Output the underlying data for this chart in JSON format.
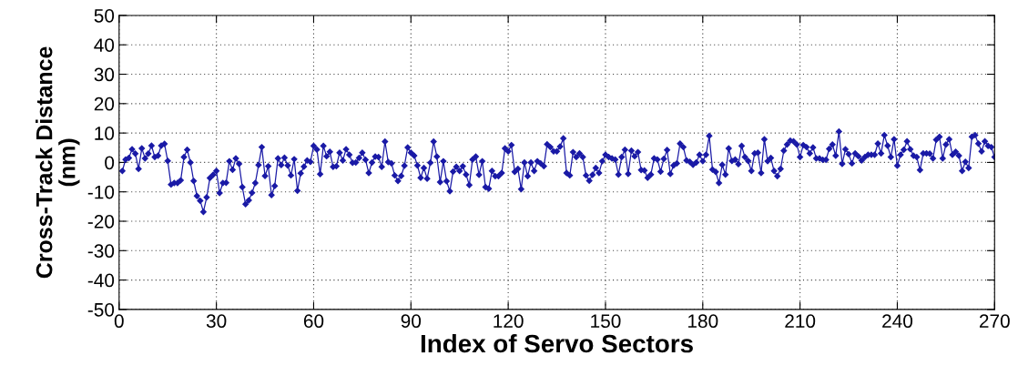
{
  "chart_data": {
    "type": "line",
    "xlabel": "Index of Servo Sectors",
    "ylabel": "Cross-Track Distance\n(nm)",
    "xlim": [
      0,
      270
    ],
    "xticks": [
      0,
      30,
      60,
      90,
      120,
      150,
      180,
      210,
      240,
      270
    ],
    "ylim": [
      -50,
      50
    ],
    "yticks": [
      -50,
      -40,
      -30,
      -20,
      -10,
      0,
      10,
      20,
      30,
      40,
      50
    ],
    "grid": true,
    "marker": "diamond",
    "line_style": "solid",
    "series": [
      {
        "color": "#1a1aa6",
        "x": [
          1,
          2,
          3,
          4,
          5,
          6,
          7,
          8,
          9,
          10,
          11,
          12,
          13,
          14,
          15,
          16,
          17,
          18,
          19,
          20,
          21,
          22,
          23,
          24,
          25,
          26,
          27,
          28,
          29,
          30,
          31,
          32,
          33,
          34,
          35,
          36,
          37,
          38,
          39,
          40,
          41,
          42,
          43,
          44,
          45,
          46,
          47,
          48,
          49,
          50,
          51,
          52,
          53,
          54,
          55,
          56,
          57,
          58,
          59,
          60,
          61,
          62,
          63,
          64,
          65,
          66,
          67,
          68,
          69,
          70,
          71,
          72,
          73,
          74,
          75,
          76,
          77,
          78,
          79,
          80,
          81,
          82,
          83,
          84,
          85,
          86,
          87,
          88,
          89,
          90,
          91,
          92,
          93,
          94,
          95,
          96,
          97,
          98,
          99,
          100,
          101,
          102,
          103,
          104,
          105,
          106,
          107,
          108,
          109,
          110,
          111,
          112,
          113,
          114,
          115,
          116,
          117,
          118,
          119,
          120,
          121,
          122,
          123,
          124,
          125,
          126,
          127,
          128,
          129,
          130,
          131,
          132,
          133,
          134,
          135,
          136,
          137,
          138,
          139,
          140,
          141,
          142,
          143,
          144,
          145,
          146,
          147,
          148,
          149,
          150,
          151,
          152,
          153,
          154,
          155,
          156,
          157,
          158,
          159,
          160,
          161,
          162,
          163,
          164,
          165,
          166,
          167,
          168,
          169,
          170,
          171,
          172,
          173,
          174,
          175,
          176,
          177,
          178,
          179,
          180,
          181,
          182,
          183,
          184,
          185,
          186,
          187,
          188,
          189,
          190,
          191,
          192,
          193,
          194,
          195,
          196,
          197,
          198,
          199,
          200,
          201,
          202,
          203,
          204,
          205,
          206,
          207,
          208,
          209,
          210,
          211,
          212,
          213,
          214,
          215,
          216,
          217,
          218,
          219,
          220,
          221,
          222,
          223,
          224,
          225,
          226,
          227,
          228,
          229,
          230,
          231,
          232,
          233,
          234,
          235,
          236,
          237,
          238,
          239,
          240,
          241,
          242,
          243,
          244,
          245,
          246,
          247,
          248,
          249,
          250,
          251,
          252,
          253,
          254,
          255,
          256,
          257,
          258,
          259,
          260,
          261,
          262,
          263,
          264,
          265,
          266,
          267,
          268,
          269,
          270
        ],
        "values": [
          -2.9,
          1.0,
          1.5,
          4.5,
          3.0,
          -2.2,
          4.8,
          1.4,
          3.0,
          5.7,
          1.8,
          2.3,
          5.7,
          6.3,
          0.5,
          -7.5,
          -7.0,
          -7.0,
          -6.1,
          1.8,
          4.3,
          0.0,
          -6.3,
          -11.4,
          -13.0,
          -16.8,
          -11.9,
          -5.3,
          -4.2,
          -2.9,
          -10.4,
          -7.0,
          -6.9,
          0.4,
          -2.5,
          1.4,
          -0.5,
          -8.4,
          -14.2,
          -12.9,
          -10.3,
          -7.0,
          -0.9,
          5.2,
          -4.6,
          -1.3,
          -11.1,
          -8.0,
          1.4,
          -0.9,
          1.6,
          -1.0,
          -4.4,
          1.1,
          -9.6,
          -3.7,
          -1.4,
          0.7,
          0.2,
          5.6,
          4.4,
          -4.0,
          5.6,
          2.1,
          3.6,
          -1.5,
          -1.3,
          3.3,
          0.7,
          4.5,
          2.6,
          -0.1,
          0.0,
          1.5,
          3.3,
          0.9,
          -3.6,
          0.0,
          2.0,
          1.8,
          -1.5,
          7.1,
          0.1,
          -0.3,
          -4.4,
          -6.3,
          -4.6,
          -1.1,
          5.1,
          3.3,
          2.3,
          -1.0,
          -5.2,
          -1.9,
          -5.5,
          -0.1,
          7.1,
          2.0,
          -6.7,
          0.4,
          -6.4,
          -9.8,
          -3.1,
          -1.5,
          -2.9,
          -1.3,
          -4.1,
          -7.7,
          1.0,
          2.0,
          -4.2,
          0.4,
          -8.4,
          -8.9,
          -2.9,
          -4.7,
          -4.7,
          -3.6,
          4.8,
          3.8,
          5.9,
          -3.2,
          -2.2,
          -9.1,
          0.0,
          -4.7,
          0.0,
          -2.9,
          0.4,
          -0.3,
          -1.3,
          6.2,
          5.2,
          3.8,
          3.8,
          5.4,
          8.2,
          -3.6,
          -4.4,
          3.5,
          1.8,
          3.1,
          1.8,
          -4.4,
          -6.2,
          -4.2,
          -1.9,
          -3.6,
          0.4,
          2.6,
          1.8,
          1.4,
          1.0,
          -4.1,
          1.8,
          4.3,
          -3.9,
          4.0,
          2.1,
          3.5,
          -2.6,
          -2.7,
          -5.2,
          -4.1,
          1.4,
          1.0,
          -3.1,
          1.2,
          4.2,
          -3.9,
          -1.0,
          -0.3,
          6.4,
          5.2,
          0.7,
          0.2,
          -0.8,
          0.0,
          2.6,
          0.4,
          2.6,
          9.0,
          -2.4,
          -3.2,
          -7.0,
          -0.8,
          -4.1,
          4.8,
          0.5,
          1.0,
          -0.6,
          5.6,
          1.8,
          0.5,
          -2.9,
          3.1,
          3.3,
          -3.6,
          7.9,
          0.4,
          1.5,
          -2.9,
          -4.7,
          -2.2,
          4.0,
          6.1,
          7.4,
          7.2,
          6.1,
          1.8,
          5.9,
          5.2,
          3.1,
          5.1,
          1.4,
          1.4,
          0.9,
          0.9,
          4.6,
          6.1,
          2.3,
          10.5,
          -0.5,
          4.5,
          2.8,
          -0.3,
          3.1,
          2.1,
          0.7,
          1.8,
          2.6,
          2.6,
          2.6,
          6.4,
          3.1,
          9.3,
          5.7,
          1.8,
          7.9,
          -1.1,
          2.6,
          4.3,
          7.2,
          4.5,
          2.3,
          1.8,
          -2.6,
          3.1,
          3.1,
          3.0,
          1.4,
          7.7,
          8.7,
          1.4,
          6.1,
          7.9,
          2.6,
          3.6,
          2.3,
          -2.9,
          0.2,
          -1.9,
          8.7,
          9.3,
          6.4,
          3.8,
          7.2,
          5.6,
          5.2,
          1.8
        ]
      }
    ]
  }
}
